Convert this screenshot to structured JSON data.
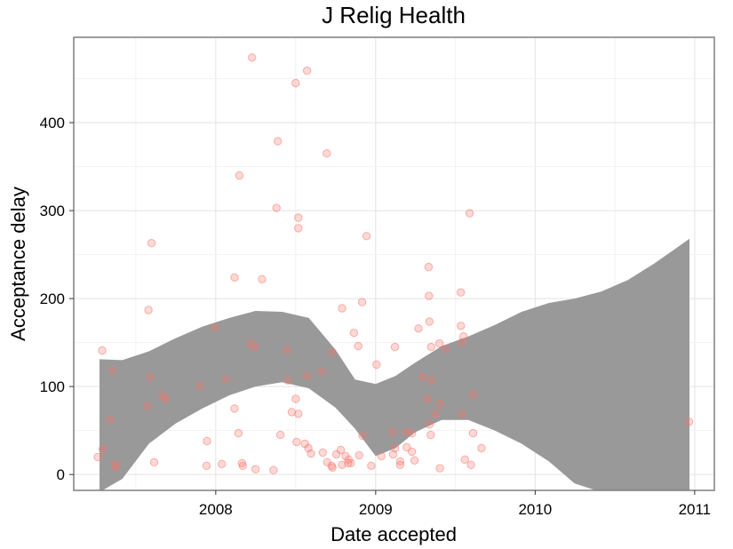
{
  "chart_data": {
    "type": "scatter",
    "title": "J Relig Health",
    "xlabel": "Date accepted",
    "ylabel": "Acceptance delay",
    "xlim": [
      "2007-02-10",
      "2011-02-15"
    ],
    "ylim": [
      -18,
      497
    ],
    "x_ticks": [
      {
        "value": "2008-01-01",
        "label": "2008"
      },
      {
        "value": "2009-01-01",
        "label": "2009"
      },
      {
        "value": "2010-01-01",
        "label": "2010"
      },
      {
        "value": "2011-01-01",
        "label": "2011"
      }
    ],
    "y_ticks": [
      0,
      100,
      200,
      300,
      400
    ],
    "grid": true,
    "point_color": "#f8766d",
    "ribbon_color": "#999999",
    "points": [
      {
        "x": "2007-04-06",
        "y": 20
      },
      {
        "x": "2007-04-16",
        "y": 141
      },
      {
        "x": "2007-04-17",
        "y": 29
      },
      {
        "x": "2007-05-04",
        "y": 62
      },
      {
        "x": "2007-05-10",
        "y": 118
      },
      {
        "x": "2007-05-16",
        "y": 12
      },
      {
        "x": "2007-05-18",
        "y": 8
      },
      {
        "x": "2007-07-28",
        "y": 78
      },
      {
        "x": "2007-07-31",
        "y": 187
      },
      {
        "x": "2007-08-03",
        "y": 111
      },
      {
        "x": "2007-08-07",
        "y": 263
      },
      {
        "x": "2007-08-13",
        "y": 14
      },
      {
        "x": "2007-09-02",
        "y": 89
      },
      {
        "x": "2007-09-08",
        "y": 86
      },
      {
        "x": "2007-11-26",
        "y": 101
      },
      {
        "x": "2007-12-11",
        "y": 10
      },
      {
        "x": "2007-12-12",
        "y": 38
      },
      {
        "x": "2007-12-30",
        "y": 167
      },
      {
        "x": "2008-01-15",
        "y": 12
      },
      {
        "x": "2008-01-24",
        "y": 108
      },
      {
        "x": "2008-02-13",
        "y": 75
      },
      {
        "x": "2008-02-13",
        "y": 224
      },
      {
        "x": "2008-02-22",
        "y": 47
      },
      {
        "x": "2008-02-24",
        "y": 340
      },
      {
        "x": "2008-03-01",
        "y": 13
      },
      {
        "x": "2008-03-03",
        "y": 10
      },
      {
        "x": "2008-03-21",
        "y": 149
      },
      {
        "x": "2008-03-24",
        "y": 474
      },
      {
        "x": "2008-03-30",
        "y": 145
      },
      {
        "x": "2008-04-01",
        "y": 6
      },
      {
        "x": "2008-04-16",
        "y": 222
      },
      {
        "x": "2008-05-12",
        "y": 5
      },
      {
        "x": "2008-05-19",
        "y": 303
      },
      {
        "x": "2008-05-22",
        "y": 379
      },
      {
        "x": "2008-05-28",
        "y": 45
      },
      {
        "x": "2008-06-12",
        "y": 142
      },
      {
        "x": "2008-06-14",
        "y": 107
      },
      {
        "x": "2008-06-23",
        "y": 71
      },
      {
        "x": "2008-07-02",
        "y": 445
      },
      {
        "x": "2008-07-02",
        "y": 86
      },
      {
        "x": "2008-07-04",
        "y": 37
      },
      {
        "x": "2008-07-08",
        "y": 292
      },
      {
        "x": "2008-07-08",
        "y": 280
      },
      {
        "x": "2008-07-08",
        "y": 69
      },
      {
        "x": "2008-07-23",
        "y": 35
      },
      {
        "x": "2008-07-28",
        "y": 459
      },
      {
        "x": "2008-07-28",
        "y": 112
      },
      {
        "x": "2008-07-31",
        "y": 30
      },
      {
        "x": "2008-08-06",
        "y": 24
      },
      {
        "x": "2008-08-30",
        "y": 117
      },
      {
        "x": "2008-09-02",
        "y": 25
      },
      {
        "x": "2008-09-11",
        "y": 365
      },
      {
        "x": "2008-09-12",
        "y": 14
      },
      {
        "x": "2008-09-22",
        "y": 10
      },
      {
        "x": "2008-09-24",
        "y": 139
      },
      {
        "x": "2008-09-24",
        "y": 8
      },
      {
        "x": "2008-10-03",
        "y": 23
      },
      {
        "x": "2008-10-13",
        "y": 28
      },
      {
        "x": "2008-10-16",
        "y": 189
      },
      {
        "x": "2008-10-16",
        "y": 11
      },
      {
        "x": "2008-10-24",
        "y": 21
      },
      {
        "x": "2008-10-30",
        "y": 13
      },
      {
        "x": "2008-10-31",
        "y": 17
      },
      {
        "x": "2008-11-05",
        "y": 13
      },
      {
        "x": "2008-11-12",
        "y": 161
      },
      {
        "x": "2008-11-22",
        "y": 146
      },
      {
        "x": "2008-11-24",
        "y": 22
      },
      {
        "x": "2008-12-01",
        "y": 196
      },
      {
        "x": "2008-12-02",
        "y": 44
      },
      {
        "x": "2008-12-11",
        "y": 271
      },
      {
        "x": "2008-12-22",
        "y": 10
      },
      {
        "x": "2009-01-03",
        "y": 125
      },
      {
        "x": "2009-01-14",
        "y": 21
      },
      {
        "x": "2009-02-09",
        "y": 48
      },
      {
        "x": "2009-02-10",
        "y": 23
      },
      {
        "x": "2009-02-14",
        "y": 145
      },
      {
        "x": "2009-02-14",
        "y": 30
      },
      {
        "x": "2009-02-26",
        "y": 15
      },
      {
        "x": "2009-02-26",
        "y": 11
      },
      {
        "x": "2009-03-11",
        "y": 48
      },
      {
        "x": "2009-03-13",
        "y": 31
      },
      {
        "x": "2009-03-25",
        "y": 26
      },
      {
        "x": "2009-03-25",
        "y": 47
      },
      {
        "x": "2009-03-31",
        "y": 16
      },
      {
        "x": "2009-04-09",
        "y": 166
      },
      {
        "x": "2009-04-18",
        "y": 111
      },
      {
        "x": "2009-04-30",
        "y": 86
      },
      {
        "x": "2009-05-02",
        "y": 236
      },
      {
        "x": "2009-05-03",
        "y": 203
      },
      {
        "x": "2009-05-04",
        "y": 174
      },
      {
        "x": "2009-05-04",
        "y": 57
      },
      {
        "x": "2009-05-07",
        "y": 45
      },
      {
        "x": "2009-05-08",
        "y": 145
      },
      {
        "x": "2009-05-09",
        "y": 107
      },
      {
        "x": "2009-05-19",
        "y": 69
      },
      {
        "x": "2009-05-27",
        "y": 149
      },
      {
        "x": "2009-05-28",
        "y": 80
      },
      {
        "x": "2009-05-28",
        "y": 7
      },
      {
        "x": "2009-06-10",
        "y": 143
      },
      {
        "x": "2009-07-15",
        "y": 207
      },
      {
        "x": "2009-07-15",
        "y": 169
      },
      {
        "x": "2009-07-17",
        "y": 150
      },
      {
        "x": "2009-07-17",
        "y": 69
      },
      {
        "x": "2009-07-21",
        "y": 157
      },
      {
        "x": "2009-07-24",
        "y": 17
      },
      {
        "x": "2009-08-04",
        "y": 297
      },
      {
        "x": "2009-08-07",
        "y": 11
      },
      {
        "x": "2009-08-12",
        "y": 91
      },
      {
        "x": "2009-08-12",
        "y": 47
      },
      {
        "x": "2009-08-31",
        "y": 30
      },
      {
        "x": "2010-12-19",
        "y": 60
      }
    ],
    "ribbon": {
      "x": [
        "2007-04-10",
        "2007-06-01",
        "2007-08-01",
        "2007-10-01",
        "2007-12-01",
        "2008-02-01",
        "2008-04-01",
        "2008-06-01",
        "2008-08-01",
        "2008-10-01",
        "2008-11-15",
        "2009-01-01",
        "2009-02-15",
        "2009-04-01",
        "2009-06-01",
        "2009-08-01",
        "2009-10-01",
        "2009-12-01",
        "2010-02-01",
        "2010-04-01",
        "2010-06-01",
        "2010-08-01",
        "2010-10-01",
        "2010-12-20"
      ],
      "upper": [
        131,
        130,
        140,
        155,
        168,
        178,
        186,
        185,
        178,
        142,
        108,
        103,
        112,
        127,
        146,
        157,
        170,
        185,
        195,
        200,
        208,
        221,
        240,
        268
      ],
      "lower": [
        -20,
        -5,
        35,
        58,
        75,
        90,
        100,
        105,
        98,
        76,
        52,
        21,
        30,
        48,
        62,
        62,
        50,
        35,
        15,
        -10,
        -20,
        -20,
        -20,
        -20
      ]
    }
  }
}
